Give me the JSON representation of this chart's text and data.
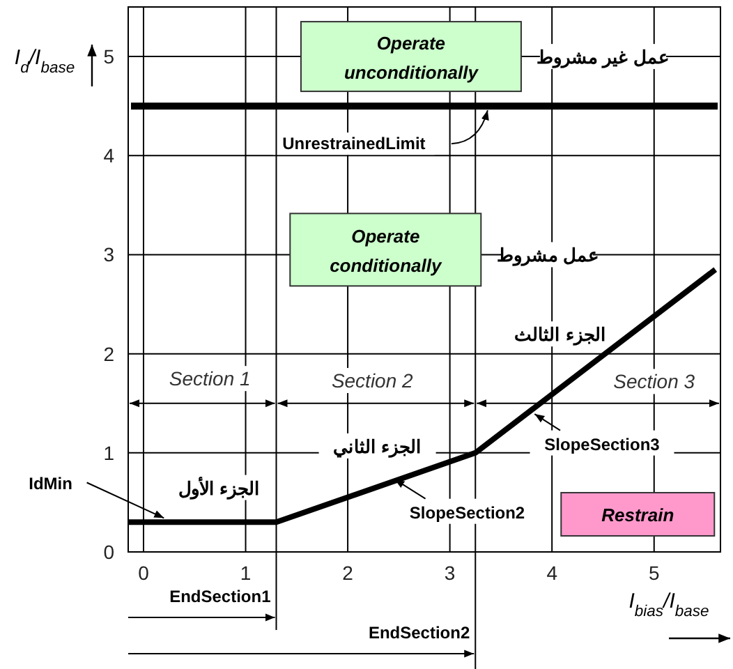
{
  "chart_data": {
    "type": "line",
    "xlabel": "I$_{bias}$/I$_{base}$",
    "ylabel": "I$_{d}$/I$_{base}$",
    "x": [
      -0.15,
      1.3,
      3.25,
      5.6
    ],
    "series": [
      {
        "color": "#000000",
        "values": [
          0.3,
          0.3,
          1.0,
          2.85
        ]
      }
    ],
    "xlim": [
      -0.15,
      5.65
    ],
    "ylim": [
      0,
      5.5
    ],
    "xticks": [
      0,
      1,
      2,
      3,
      4,
      5
    ],
    "yticks": [
      0,
      1,
      2,
      3,
      4,
      5
    ],
    "grid": true,
    "marker": "none",
    "line_style": "solid",
    "ref_lines": [
      {
        "axis": "y",
        "value": 4.5,
        "label": "UnrestrainedLimit",
        "color": "#000000"
      },
      {
        "axis": "x",
        "value": 1.3,
        "label": "EndSection1",
        "color": "#000000"
      },
      {
        "axis": "x",
        "value": 3.25,
        "label": "EndSection2",
        "color": "#000000"
      }
    ],
    "annotations": [
      "Operate unconditionally",
      "عمل غير مشروط",
      "Operate conditionally",
      "عمل مشروط",
      "الجزء الثالث",
      "Section 1",
      "Section 2",
      "Section 3",
      "الجزء الثاني",
      "SlopeSection3",
      "الجزء الأول",
      {
        "text": "IdMin",
        "x": 0.2,
        "y": 0.3
      },
      "SlopeSection2",
      "Restrain"
    ]
  }
}
